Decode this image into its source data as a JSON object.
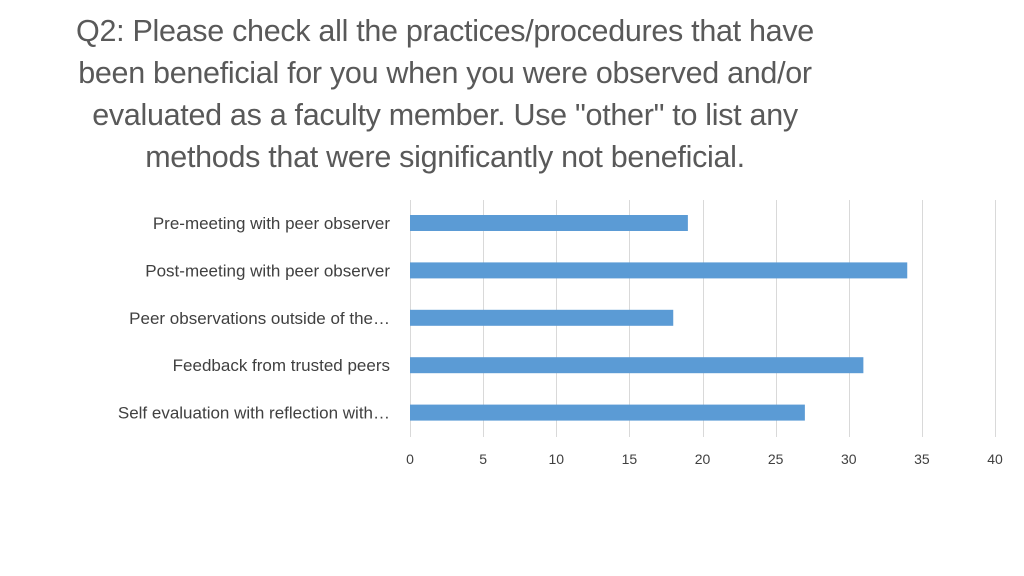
{
  "title": {
    "lines": [
      "Q2: Please check all the practices/procedures that have",
      "been beneficial for you when you were observed and/or",
      "evaluated as a faculty member. Use \"other\" to list any",
      "methods that were significantly  not beneficial."
    ]
  },
  "chart_data": {
    "type": "bar",
    "orientation": "horizontal",
    "categories": [
      "Pre-meeting with peer observer",
      "Post-meeting with peer observer",
      "Peer observations outside of the…",
      "Feedback from trusted peers",
      "Self evaluation with reflection with…"
    ],
    "values": [
      19,
      34,
      18,
      31,
      27
    ],
    "xlim": [
      0,
      40
    ],
    "x_ticks": [
      0,
      5,
      10,
      15,
      20,
      25,
      30,
      35,
      40
    ],
    "grid": "vertical",
    "bar_color": "#5b9bd5",
    "grid_color": "#d9d9d9"
  }
}
